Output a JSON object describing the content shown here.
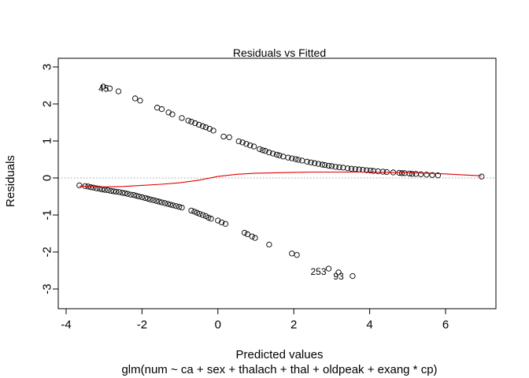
{
  "chart_data": {
    "type": "scatter",
    "title": "Residuals vs Fitted",
    "xlabel": "Predicted values",
    "subtitle": "glm(num ~ ca + sex + thalach + thal + oldpeak + exang * cp)",
    "ylabel": "Residuals",
    "xlim": [
      -4.0,
      7.0
    ],
    "ylim": [
      -3.25,
      3.2
    ],
    "xticks": [
      -4,
      -2,
      0,
      2,
      4,
      6
    ],
    "yticks": [
      -3,
      -2,
      -1,
      0,
      1,
      2,
      3
    ],
    "zero_line": {
      "y": 0,
      "color": "#a0a0a0",
      "style": "dotted"
    },
    "smooth_color": "#e00000",
    "point_color": "#000000",
    "grid": false,
    "legend": "none",
    "labeled_points": [
      {
        "label": "45",
        "x": -2.85,
        "y": 2.42
      },
      {
        "label": "253",
        "x": 2.92,
        "y": -2.45
      },
      {
        "label": "93",
        "x": 3.18,
        "y": -2.55
      }
    ],
    "series": [
      {
        "values": [
          {
            "x": -3.02,
            "y": 2.47
          },
          {
            "x": -2.85,
            "y": 2.42
          },
          {
            "x": -2.62,
            "y": 2.34
          },
          {
            "x": -2.18,
            "y": 2.15
          },
          {
            "x": -2.05,
            "y": 2.09
          },
          {
            "x": -1.6,
            "y": 1.9
          },
          {
            "x": -1.48,
            "y": 1.86
          },
          {
            "x": -1.3,
            "y": 1.77
          },
          {
            "x": -1.2,
            "y": 1.72
          },
          {
            "x": -0.95,
            "y": 1.62
          },
          {
            "x": -0.78,
            "y": 1.55
          },
          {
            "x": -0.7,
            "y": 1.52
          },
          {
            "x": -0.6,
            "y": 1.48
          },
          {
            "x": -0.5,
            "y": 1.44
          },
          {
            "x": -0.4,
            "y": 1.4
          },
          {
            "x": -0.32,
            "y": 1.37
          },
          {
            "x": -0.22,
            "y": 1.33
          },
          {
            "x": -0.12,
            "y": 1.28
          },
          {
            "x": 0.15,
            "y": 1.12
          },
          {
            "x": 0.3,
            "y": 1.1
          },
          {
            "x": 0.55,
            "y": 0.99
          },
          {
            "x": 0.65,
            "y": 0.96
          },
          {
            "x": 0.75,
            "y": 0.92
          },
          {
            "x": 0.85,
            "y": 0.88
          },
          {
            "x": 0.95,
            "y": 0.85
          },
          {
            "x": 1.1,
            "y": 0.78
          },
          {
            "x": 1.18,
            "y": 0.75
          },
          {
            "x": 1.25,
            "y": 0.73
          },
          {
            "x": 1.35,
            "y": 0.69
          },
          {
            "x": 1.45,
            "y": 0.66
          },
          {
            "x": 1.55,
            "y": 0.63
          },
          {
            "x": 1.62,
            "y": 0.61
          },
          {
            "x": 1.72,
            "y": 0.58
          },
          {
            "x": 1.85,
            "y": 0.55
          },
          {
            "x": 1.95,
            "y": 0.53
          },
          {
            "x": 2.05,
            "y": 0.51
          },
          {
            "x": 2.12,
            "y": 0.49
          },
          {
            "x": 2.22,
            "y": 0.47
          },
          {
            "x": 2.35,
            "y": 0.44
          },
          {
            "x": 2.45,
            "y": 0.42
          },
          {
            "x": 2.55,
            "y": 0.4
          },
          {
            "x": 2.65,
            "y": 0.38
          },
          {
            "x": 2.75,
            "y": 0.36
          },
          {
            "x": 2.82,
            "y": 0.35
          },
          {
            "x": 2.92,
            "y": 0.33
          },
          {
            "x": 3.0,
            "y": 0.32
          },
          {
            "x": 3.1,
            "y": 0.3
          },
          {
            "x": 3.2,
            "y": 0.29
          },
          {
            "x": 3.3,
            "y": 0.28
          },
          {
            "x": 3.42,
            "y": 0.26
          },
          {
            "x": 3.52,
            "y": 0.25
          },
          {
            "x": 3.62,
            "y": 0.24
          },
          {
            "x": 3.72,
            "y": 0.23
          },
          {
            "x": 3.82,
            "y": 0.22
          },
          {
            "x": 3.92,
            "y": 0.21
          },
          {
            "x": 4.02,
            "y": 0.2
          },
          {
            "x": 4.1,
            "y": 0.19
          },
          {
            "x": 4.22,
            "y": 0.18
          },
          {
            "x": 4.35,
            "y": 0.17
          },
          {
            "x": 4.45,
            "y": 0.16
          },
          {
            "x": 4.62,
            "y": 0.15
          },
          {
            "x": 4.78,
            "y": 0.14
          },
          {
            "x": 4.85,
            "y": 0.13
          },
          {
            "x": 4.92,
            "y": 0.13
          },
          {
            "x": 5.05,
            "y": 0.12
          },
          {
            "x": 5.12,
            "y": 0.11
          },
          {
            "x": 5.22,
            "y": 0.11
          },
          {
            "x": 5.35,
            "y": 0.1
          },
          {
            "x": 5.5,
            "y": 0.09
          },
          {
            "x": 5.65,
            "y": 0.08
          },
          {
            "x": 5.8,
            "y": 0.07
          },
          {
            "x": 6.95,
            "y": 0.04
          },
          {
            "x": -3.65,
            "y": -0.2
          },
          {
            "x": -3.5,
            "y": -0.22
          },
          {
            "x": -3.42,
            "y": -0.23
          },
          {
            "x": -3.35,
            "y": -0.25
          },
          {
            "x": -3.28,
            "y": -0.26
          },
          {
            "x": -3.2,
            "y": -0.28
          },
          {
            "x": -3.12,
            "y": -0.29
          },
          {
            "x": -3.05,
            "y": -0.31
          },
          {
            "x": -2.98,
            "y": -0.32
          },
          {
            "x": -2.9,
            "y": -0.33
          },
          {
            "x": -2.82,
            "y": -0.35
          },
          {
            "x": -2.75,
            "y": -0.36
          },
          {
            "x": -2.68,
            "y": -0.37
          },
          {
            "x": -2.6,
            "y": -0.38
          },
          {
            "x": -2.52,
            "y": -0.4
          },
          {
            "x": -2.45,
            "y": -0.41
          },
          {
            "x": -2.38,
            "y": -0.43
          },
          {
            "x": -2.3,
            "y": -0.45
          },
          {
            "x": -2.22,
            "y": -0.46
          },
          {
            "x": -2.15,
            "y": -0.48
          },
          {
            "x": -2.08,
            "y": -0.5
          },
          {
            "x": -2.0,
            "y": -0.52
          },
          {
            "x": -1.92,
            "y": -0.54
          },
          {
            "x": -1.85,
            "y": -0.56
          },
          {
            "x": -1.78,
            "y": -0.58
          },
          {
            "x": -1.7,
            "y": -0.6
          },
          {
            "x": -1.62,
            "y": -0.62
          },
          {
            "x": -1.55,
            "y": -0.64
          },
          {
            "x": -1.48,
            "y": -0.66
          },
          {
            "x": -1.4,
            "y": -0.68
          },
          {
            "x": -1.32,
            "y": -0.7
          },
          {
            "x": -1.25,
            "y": -0.72
          },
          {
            "x": -1.18,
            "y": -0.74
          },
          {
            "x": -1.1,
            "y": -0.76
          },
          {
            "x": -1.02,
            "y": -0.78
          },
          {
            "x": -0.95,
            "y": -0.8
          },
          {
            "x": -0.7,
            "y": -0.88
          },
          {
            "x": -0.62,
            "y": -0.91
          },
          {
            "x": -0.55,
            "y": -0.94
          },
          {
            "x": -0.48,
            "y": -0.97
          },
          {
            "x": -0.4,
            "y": -1.0
          },
          {
            "x": -0.32,
            "y": -1.03
          },
          {
            "x": -0.25,
            "y": -1.07
          },
          {
            "x": -0.18,
            "y": -1.1
          },
          {
            "x": 0.0,
            "y": -1.15
          },
          {
            "x": 0.1,
            "y": -1.2
          },
          {
            "x": 0.2,
            "y": -1.24
          },
          {
            "x": 0.7,
            "y": -1.48
          },
          {
            "x": 0.78,
            "y": -1.52
          },
          {
            "x": 0.9,
            "y": -1.58
          },
          {
            "x": 0.98,
            "y": -1.62
          },
          {
            "x": 1.35,
            "y": -1.8
          },
          {
            "x": 1.95,
            "y": -2.04
          },
          {
            "x": 2.08,
            "y": -2.08
          },
          {
            "x": 2.92,
            "y": -2.45
          },
          {
            "x": 3.18,
            "y": -2.55
          },
          {
            "x": 3.55,
            "y": -2.65
          }
        ]
      }
    ],
    "smooth_curve": [
      {
        "x": -3.65,
        "y": -0.22
      },
      {
        "x": -3.0,
        "y": -0.24
      },
      {
        "x": -2.5,
        "y": -0.23
      },
      {
        "x": -2.0,
        "y": -0.2
      },
      {
        "x": -1.5,
        "y": -0.17
      },
      {
        "x": -1.0,
        "y": -0.13
      },
      {
        "x": -0.5,
        "y": -0.06
      },
      {
        "x": 0.0,
        "y": 0.04
      },
      {
        "x": 0.5,
        "y": 0.1
      },
      {
        "x": 1.0,
        "y": 0.13
      },
      {
        "x": 1.5,
        "y": 0.14
      },
      {
        "x": 2.0,
        "y": 0.15
      },
      {
        "x": 2.5,
        "y": 0.16
      },
      {
        "x": 3.0,
        "y": 0.16
      },
      {
        "x": 3.5,
        "y": 0.16
      },
      {
        "x": 4.0,
        "y": 0.16
      },
      {
        "x": 4.5,
        "y": 0.15
      },
      {
        "x": 5.0,
        "y": 0.14
      },
      {
        "x": 5.5,
        "y": 0.13
      },
      {
        "x": 6.0,
        "y": 0.11
      },
      {
        "x": 6.5,
        "y": 0.08
      },
      {
        "x": 6.95,
        "y": 0.06
      }
    ]
  }
}
